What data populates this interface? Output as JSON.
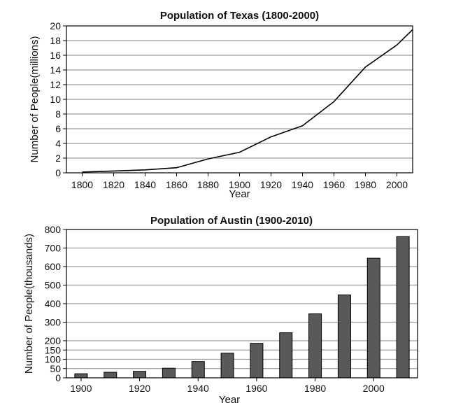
{
  "chart_data": [
    {
      "type": "line",
      "title": "Population of Texas (1800-2000)",
      "xlabel": "Year",
      "ylabel": "Number of People(millions)",
      "xlim": [
        1790,
        2010
      ],
      "ylim": [
        0,
        20
      ],
      "x_ticks": [
        1800,
        1820,
        1840,
        1860,
        1880,
        1900,
        1920,
        1940,
        1960,
        1980,
        2000
      ],
      "y_ticks": [
        0,
        2,
        4,
        6,
        8,
        10,
        12,
        14,
        16,
        18,
        20
      ],
      "grid": "horizontal",
      "legend": "none",
      "color": "#000000",
      "series": [
        {
          "x": [
            1800,
            1820,
            1840,
            1860,
            1880,
            1900,
            1920,
            1940,
            1960,
            1980,
            2000,
            2010
          ],
          "values": [
            0.1,
            0.25,
            0.4,
            0.7,
            1.9,
            2.8,
            4.9,
            6.4,
            9.7,
            14.4,
            17.4,
            19.5
          ]
        }
      ]
    },
    {
      "type": "bar",
      "title": "Population of Austin (1900-2010)",
      "xlabel": "Year",
      "ylabel": "Number of People(thousands)",
      "xlim": [
        1895,
        2015
      ],
      "ylim": [
        0,
        800
      ],
      "x_ticks": [
        1900,
        1920,
        1940,
        1960,
        1980,
        2000
      ],
      "y_ticks": [
        0,
        50,
        100,
        150,
        200,
        300,
        400,
        500,
        600,
        700,
        800
      ],
      "grid": "horizontal",
      "legend": "none",
      "bar_color": "#595959",
      "categories": [
        1900,
        1910,
        1920,
        1930,
        1940,
        1950,
        1960,
        1970,
        1980,
        1990,
        2000,
        2010
      ],
      "values": [
        22,
        30,
        35,
        52,
        88,
        133,
        186,
        243,
        345,
        447,
        645,
        762
      ]
    }
  ]
}
